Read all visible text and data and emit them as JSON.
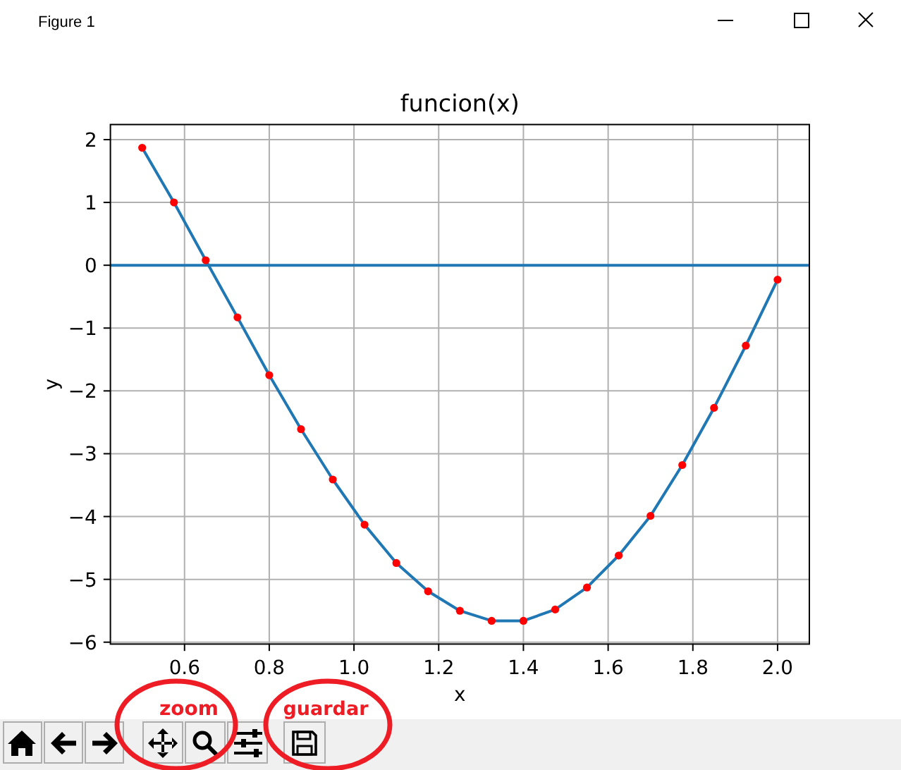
{
  "chart_data": {
    "type": "line",
    "title": "funcion(x)",
    "xlabel": "x",
    "ylabel": "y",
    "x": [
      0.5,
      0.575,
      0.65,
      0.725,
      0.8,
      0.875,
      0.95,
      1.025,
      1.1,
      1.175,
      1.25,
      1.325,
      1.4,
      1.475,
      1.55,
      1.625,
      1.7,
      1.775,
      1.85,
      1.925,
      2.0
    ],
    "series": [
      {
        "color": "#1f77b4",
        "marker": "none",
        "values": [
          1.87,
          1.0,
          0.08,
          -0.83,
          -1.75,
          -2.61,
          -3.41,
          -4.13,
          -4.74,
          -5.19,
          -5.5,
          -5.66,
          -5.66,
          -5.48,
          -5.13,
          -4.62,
          -3.99,
          -3.18,
          -2.27,
          -1.28,
          -0.23
        ]
      },
      {
        "type": "scatter",
        "color": "#ff0000",
        "marker": "circle",
        "values": [
          1.87,
          1.0,
          0.08,
          -0.83,
          -1.75,
          -2.61,
          -3.41,
          -4.13,
          -4.74,
          -5.19,
          -5.5,
          -5.66,
          -5.66,
          -5.48,
          -5.13,
          -4.62,
          -3.99,
          -3.18,
          -2.27,
          -1.28,
          -0.23
        ]
      }
    ],
    "xlim": [
      0.425,
      2.075
    ],
    "ylim": [
      -6.03,
      2.24
    ],
    "xticks": [
      0.6,
      0.8,
      {
        "value": 1,
        "label": "1.0"
      },
      1.2,
      1.4,
      1.6,
      1.8,
      {
        "value": 2,
        "label": "2.0"
      }
    ],
    "yticks": [
      {
        "value": -6,
        "label": "−6"
      },
      {
        "value": -5,
        "label": "−5"
      },
      {
        "value": -4,
        "label": "−4"
      },
      {
        "value": -3,
        "label": "−3"
      },
      {
        "value": -2,
        "label": "−2"
      },
      {
        "value": -1,
        "label": "−1"
      },
      0,
      1,
      2
    ],
    "grid": true,
    "ref_lines": [
      {
        "axis": "y",
        "value": 0,
        "color": "#1f77b4"
      }
    ],
    "annotations": [
      "Figure 1",
      "zoom",
      "guardar"
    ]
  }
}
